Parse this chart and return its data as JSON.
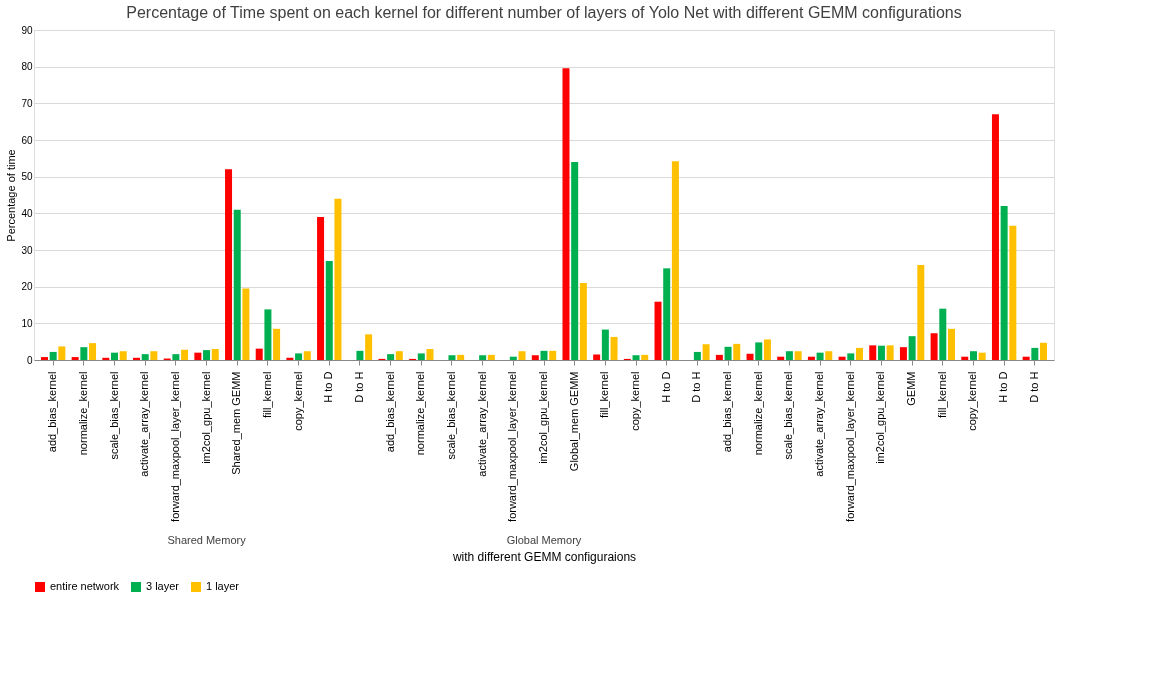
{
  "chart_data": {
    "type": "bar",
    "title": "Percentage of Time spent on each kernel for different number of layers of Yolo Net with different GEMM configurations",
    "xlabel": "with different GEMM configuraions",
    "ylabel": "Percentage of time",
    "categories": [
      "add_bias_kernel",
      "normalize_kernel",
      "scale_bias_kernel",
      "activate_array_kernel",
      "forward_maxpool_layer_kernel",
      "im2col_gpu_kernel",
      "Shared_mem GEMM",
      "fill_kernel",
      "copy_kernel",
      "H to D",
      "D to H",
      "add_bias_kernel",
      "normalize_kernel",
      "scale_bias_kernel",
      "activate_array_kernel",
      "forward_maxpool_layer_kernel",
      "im2col_gpu_kernel",
      "Global_mem GEMM",
      "fill_kernel",
      "copy_kernel",
      "H to D",
      "D to H",
      "add_bias_kernel",
      "normalize_kernel",
      "scale_bias_kernel",
      "activate_array_kernel",
      "forward_maxpool_layer_kernel",
      "im2col_gpu_kernel",
      "GEMM",
      "fill_kernel",
      "copy_kernel",
      "H to D",
      "D to H"
    ],
    "series": [
      {
        "name": "entire network",
        "color": "#ff0000",
        "values": [
          0.8,
          0.8,
          0.6,
          0.6,
          0.4,
          2.0,
          52,
          3.1,
          0.6,
          39,
          0,
          0.3,
          0.3,
          0,
          0,
          0,
          1.3,
          79.6,
          1.5,
          0.3,
          15.9,
          0,
          1.4,
          1.7,
          0.9,
          0.9,
          0.9,
          4.0,
          3.5,
          7.3,
          0.9,
          67,
          0.9
        ]
      },
      {
        "name": "3 layer",
        "color": "#00b050",
        "values": [
          2.2,
          3.5,
          2.0,
          1.6,
          1.6,
          2.7,
          41,
          13.8,
          1.8,
          27,
          2.5,
          1.6,
          1.8,
          1.3,
          1.3,
          0.9,
          2.5,
          54,
          8.3,
          1.3,
          25,
          2.2,
          3.6,
          4.8,
          2.4,
          2.0,
          1.8,
          3.9,
          6.5,
          14,
          2.4,
          42,
          3.3
        ]
      },
      {
        "name": "1 layer",
        "color": "#ffc000",
        "values": [
          3.7,
          4.6,
          2.4,
          2.4,
          2.8,
          3.0,
          19.5,
          8.5,
          2.4,
          44,
          7,
          2.4,
          3.0,
          1.4,
          1.4,
          2.4,
          2.5,
          21,
          6.3,
          1.4,
          54.2,
          4.3,
          4.4,
          5.6,
          2.4,
          2.4,
          3.3,
          4.0,
          25.9,
          8.5,
          2.0,
          36.6,
          4.7
        ]
      }
    ],
    "ylim": [
      0,
      90
    ],
    "yticks": [
      0,
      10,
      20,
      30,
      40,
      50,
      60,
      70,
      80,
      90
    ],
    "grid": "y",
    "legend": "bottom",
    "annotations": [
      "Shared Memory",
      "Global Memory"
    ]
  }
}
